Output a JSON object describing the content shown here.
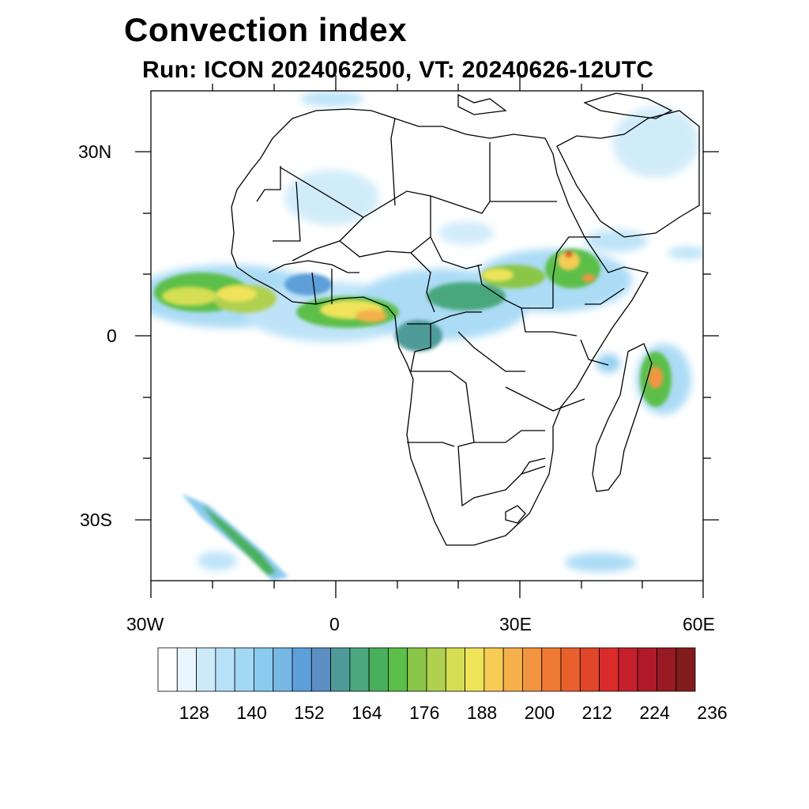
{
  "title": "Convection index",
  "subtitle": "Run: ICON 2024062500,  VT: 20240626-12UTC",
  "axes": {
    "lat_labels": [
      "30N",
      "0",
      "30S"
    ],
    "lon_labels": [
      "30W",
      "0",
      "30E",
      "60E"
    ],
    "lon_range": [
      -30,
      60
    ],
    "lat_range": [
      -40,
      40
    ]
  },
  "colorbar": {
    "colors": [
      "#ffffff",
      "#e9f6fd",
      "#cdeaf9",
      "#b7e1f8",
      "#a3d8f5",
      "#8bcbf0",
      "#76b7e4",
      "#5d9fd8",
      "#5b8fc4",
      "#4f9b9a",
      "#4aa77e",
      "#48b05d",
      "#5cbf4a",
      "#8bc64a",
      "#b0d04f",
      "#d6de53",
      "#efe35a",
      "#f6cc54",
      "#f5b04b",
      "#f39540",
      "#ef7a35",
      "#e8602c",
      "#e04628",
      "#d92c2b",
      "#c61f2d",
      "#b01a29",
      "#981a22",
      "#811b1c"
    ],
    "tick_labels": [
      "128",
      "140",
      "152",
      "164",
      "176",
      "188",
      "200",
      "212",
      "224",
      "236"
    ]
  }
}
